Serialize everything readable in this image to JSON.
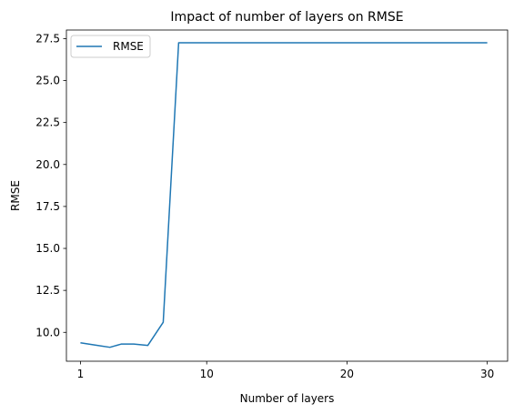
{
  "chart_data": {
    "type": "line",
    "title": "Impact of number of layers on RMSE",
    "xlabel": "Number of layers",
    "ylabel": "RMSE",
    "xlim": [
      0.0,
      31.45
    ],
    "ylim": [
      8.28,
      28.01
    ],
    "x_ticks": [
      1,
      10,
      20,
      30
    ],
    "x_tick_labels": [
      "1",
      "10",
      "20",
      "30"
    ],
    "y_ticks": [
      10.0,
      12.5,
      15.0,
      17.5,
      20.0,
      22.5,
      25.0,
      27.5
    ],
    "y_tick_labels": [
      "10.0",
      "12.5",
      "15.0",
      "17.5",
      "20.0",
      "22.5",
      "25.0",
      "27.5"
    ],
    "grid": false,
    "legend_position": "top-left",
    "series": [
      {
        "name": "RMSE",
        "color": "#1f77b4",
        "x": [
          1,
          2.0,
          3.1,
          3.9,
          4.8,
          5.8,
          6.9,
          8.0,
          30
        ],
        "y": [
          9.38,
          9.25,
          9.11,
          9.3,
          9.3,
          9.22,
          10.6,
          27.25,
          27.25
        ]
      }
    ]
  }
}
